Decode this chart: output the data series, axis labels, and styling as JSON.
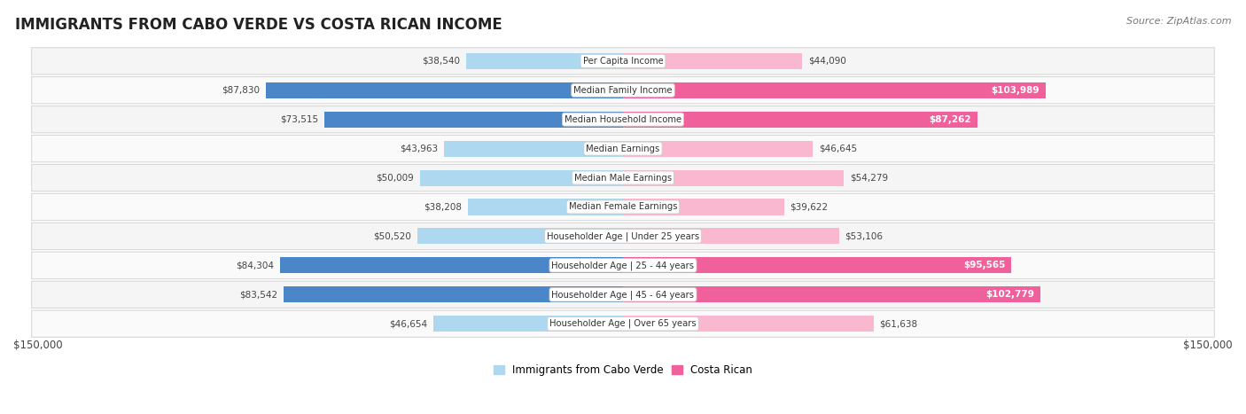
{
  "title": "IMMIGRANTS FROM CABO VERDE VS COSTA RICAN INCOME",
  "source": "Source: ZipAtlas.com",
  "categories": [
    "Per Capita Income",
    "Median Family Income",
    "Median Household Income",
    "Median Earnings",
    "Median Male Earnings",
    "Median Female Earnings",
    "Householder Age | Under 25 years",
    "Householder Age | 25 - 44 years",
    "Householder Age | 45 - 64 years",
    "Householder Age | Over 65 years"
  ],
  "cabo_verde_values": [
    38540,
    87830,
    73515,
    43963,
    50009,
    38208,
    50520,
    84304,
    83542,
    46654
  ],
  "costa_rican_values": [
    44090,
    103989,
    87262,
    46645,
    54279,
    39622,
    53106,
    95565,
    102779,
    61638
  ],
  "cabo_verde_light": "#add8f0",
  "cabo_verde_dark": "#4a86c8",
  "costa_rican_light": "#f9b8d0",
  "costa_rican_dark": "#f0609a",
  "max_value": 150000,
  "fig_bg": "#ffffff",
  "row_bg_even": "#f5f5f5",
  "row_bg_odd": "#fafafa",
  "row_border": "#d8d8d8"
}
